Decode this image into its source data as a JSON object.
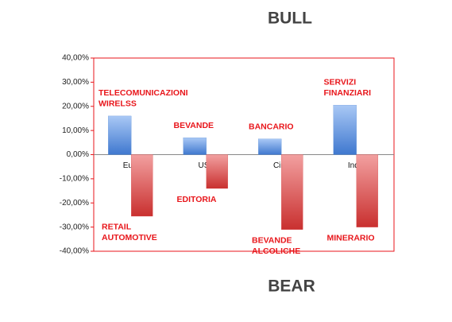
{
  "chart_data": {
    "type": "bar",
    "title": "BULL",
    "bottom_title": "BEAR",
    "categories": [
      "Euro",
      "USA",
      "Cina",
      "India"
    ],
    "series": [
      {
        "color": "#5b8fd8",
        "values": [
          16,
          7,
          6.5,
          20.5
        ],
        "labels": [
          [
            "TELECOMUNICAZIONI",
            "WIRELSS"
          ],
          [
            "BEVANDE"
          ],
          [
            "BANCARIO"
          ],
          [
            "SERVIZI",
            "FINANZIARI"
          ]
        ]
      },
      {
        "color": "#d94040",
        "values": [
          -25.5,
          -14,
          -31,
          -30
        ],
        "labels": [
          [
            "RETAIL",
            "AUTOMOTIVE"
          ],
          [
            "EDITORIA"
          ],
          [
            "BEVANDE",
            "ALCOLICHE"
          ],
          [
            "MINERARIO"
          ]
        ]
      }
    ],
    "ylim": [
      -40,
      40
    ],
    "yticks": [
      {
        "value": -40,
        "label": "-40,00%"
      },
      {
        "value": -30,
        "label": "-30,00%"
      },
      {
        "value": -20,
        "label": "-20,00%"
      },
      {
        "value": -10,
        "label": "-10,00%"
      },
      {
        "value": 0,
        "label": "0,00%"
      },
      {
        "value": 10,
        "label": "10,00%"
      },
      {
        "value": 20,
        "label": "20,00%"
      },
      {
        "value": 30,
        "label": "30,00%"
      },
      {
        "value": 40,
        "label": "40,00%"
      }
    ],
    "frame_color": "#e8161b"
  }
}
